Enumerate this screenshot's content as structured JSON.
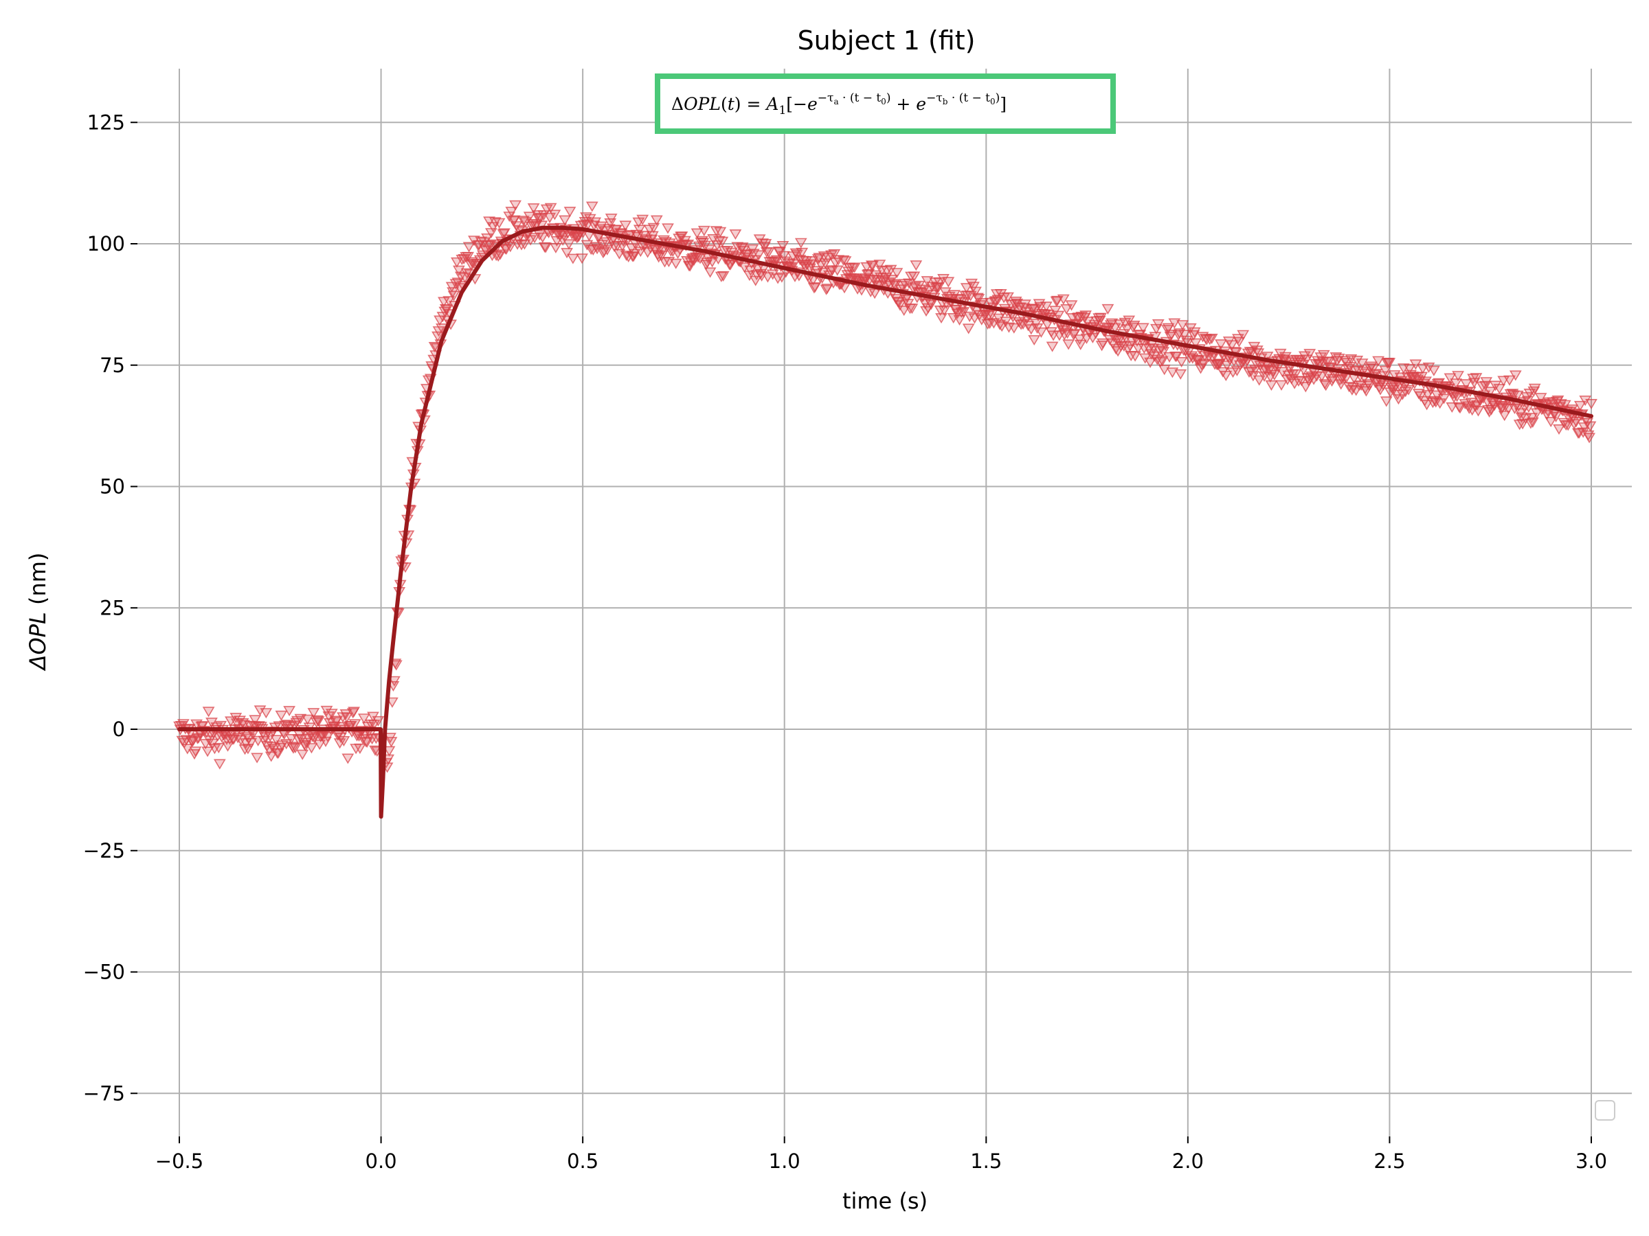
{
  "chart_data": {
    "type": "scatter",
    "title": "Subject 1 (fit)",
    "xlabel": "time (s)",
    "ylabel_symbol": "ΔOPL",
    "ylabel_unit": " (nm)",
    "xlim": [
      -0.55,
      3.1
    ],
    "ylim": [
      -82,
      135
    ],
    "xticks": [
      -0.5,
      0.0,
      0.5,
      1.0,
      1.5,
      2.0,
      2.5,
      3.0
    ],
    "xtick_labels": [
      "−0.5",
      "0.0",
      "0.5",
      "1.0",
      "1.5",
      "2.0",
      "2.5",
      "3.0"
    ],
    "yticks": [
      -75,
      -50,
      -25,
      0,
      25,
      50,
      75,
      100,
      125
    ],
    "ytick_labels": [
      "−75",
      "−50",
      "−25",
      "0",
      "25",
      "50",
      "75",
      "100",
      "125"
    ],
    "grid": true,
    "legend": "bottom-right (empty)",
    "annotation": {
      "text": "ΔOPL(t) = A1[−e^(−τa·(t−t0)) + e^(−τb·(t−t0))]",
      "position": "top-center",
      "border_color": "#4bc878"
    },
    "series": [
      {
        "kind": "scatter",
        "marker": "triangle-down",
        "color": "#d9434a",
        "note": "noisy measured samples scattered around the fit curve",
        "x": [
          -0.5,
          -0.4,
          -0.3,
          -0.2,
          -0.1,
          -0.01,
          0.02,
          0.05,
          0.1,
          0.15,
          0.2,
          0.25,
          0.3,
          0.35,
          0.4,
          0.5,
          0.6,
          0.8,
          1.0,
          1.2,
          1.5,
          1.7,
          2.0,
          2.2,
          2.5,
          2.8,
          3.0
        ],
        "y": [
          -1.5,
          -1.2,
          -1.0,
          -0.8,
          -0.5,
          0.5,
          -6,
          33,
          63,
          84,
          94,
          99.5,
          102,
          103,
          103,
          102.5,
          101,
          98.5,
          95.5,
          92.5,
          87,
          83.5,
          78.5,
          75.5,
          72,
          67.5,
          64.5
        ]
      },
      {
        "kind": "line",
        "color": "#9b1a1d",
        "x": [
          -0.5,
          -0.4,
          -0.3,
          -0.2,
          -0.1,
          -0.001,
          0.0,
          0.005,
          0.01,
          0.02,
          0.03,
          0.05,
          0.075,
          0.1,
          0.15,
          0.2,
          0.25,
          0.3,
          0.35,
          0.4,
          0.45,
          0.5,
          0.6,
          0.8,
          1.0,
          1.2,
          1.4,
          1.6,
          1.8,
          2.0,
          2.2,
          2.4,
          2.6,
          2.8,
          3.0
        ],
        "y": [
          0,
          0,
          0,
          0,
          0,
          0,
          -18,
          -10,
          0,
          10,
          18,
          33,
          50,
          63,
          80,
          90,
          96.5,
          100.5,
          102.5,
          103.3,
          103.3,
          103,
          101.5,
          98.5,
          95,
          91.5,
          88.5,
          85.5,
          82,
          79,
          76,
          73.5,
          71,
          68,
          64.5
        ]
      }
    ]
  }
}
